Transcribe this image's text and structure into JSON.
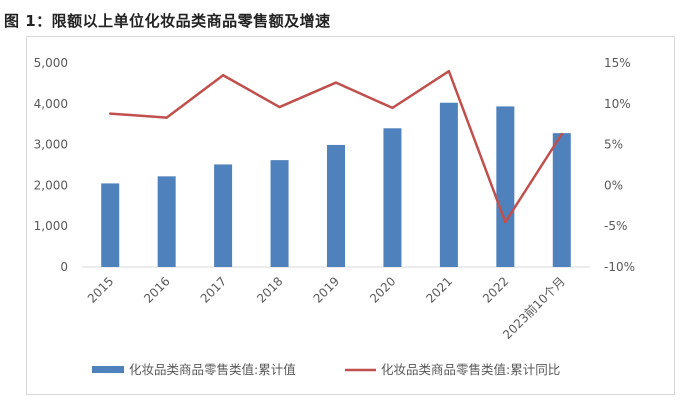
{
  "title": "图 1：限额以上单位化妆品类商品零售额及增速",
  "chart_data": {
    "type": "bar+line",
    "categories": [
      "2015",
      "2016",
      "2017",
      "2018",
      "2019",
      "2020",
      "2021",
      "2022",
      "2023前10个月"
    ],
    "series": [
      {
        "name": "化妆品类商品零售类值:累计值",
        "type": "bar",
        "axis": "left",
        "color": "#4f81bd",
        "values": [
          2049,
          2222,
          2514,
          2619,
          2992,
          3400,
          4026,
          3936,
          3281
        ]
      },
      {
        "name": "化妆品类商品零售类值:累计同比",
        "type": "line",
        "axis": "right",
        "color": "#c0504d",
        "values": [
          8.8,
          8.3,
          13.5,
          9.6,
          12.6,
          9.5,
          14.0,
          -4.5,
          6.3
        ]
      }
    ],
    "y_left": {
      "min": 0,
      "max": 5000,
      "ticks": [
        "0",
        "1,000",
        "2,000",
        "3,000",
        "4,000",
        "5,000"
      ]
    },
    "y_right": {
      "min": -10,
      "max": 15,
      "ticks": [
        "-10%",
        "-5%",
        "0%",
        "5%",
        "10%",
        "15%"
      ]
    },
    "grid": false,
    "legend": "bottom"
  }
}
